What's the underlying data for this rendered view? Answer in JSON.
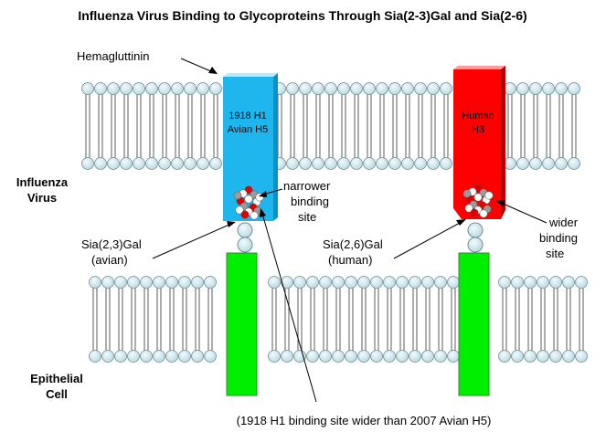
{
  "title": "Influenza Virus Binding to Glycoproteins Through Sia(2-3)Gal and Sia(2-6)",
  "labels": {
    "hemagglutinin": "Hemagluttinin",
    "influenza_virus_line1": "Influenza",
    "influenza_virus_line2": "Virus",
    "epithelial_cell_line1": "Epithelial",
    "epithelial_cell_line2": "Cell",
    "avian_protein_line1": "1918 H1",
    "avian_protein_line2": "Avian H5",
    "human_protein_line1": "Human",
    "human_protein_line2": "H3",
    "narrower_line1": "narrower",
    "narrower_line2": "binding",
    "narrower_line3": "site",
    "wider_line1": "wider",
    "wider_line2": "binding",
    "wider_line3": "site",
    "sia23_line1": "Sia(2,3)Gal",
    "sia23_line2": "(avian)",
    "sia26_line1": "Sia(2,6)Gal",
    "sia26_line2": "(human)",
    "footnote": "(1918 H1 binding site wider than 2007 Avian H5)"
  },
  "colors": {
    "membrane_head": "#cfe6ee",
    "membrane_head_stroke": "#6d8f99",
    "avian_hemagglutinin": "#1fb6ee",
    "human_hemagglutinin": "#ff0000",
    "receptor": "#00ee00",
    "sugar_bead": "#cfe6ee"
  }
}
